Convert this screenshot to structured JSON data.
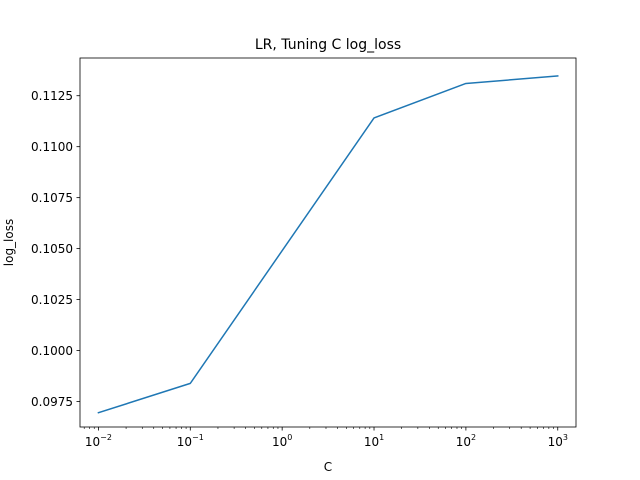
{
  "chart_data": {
    "type": "line",
    "title": "LR, Tuning C log_loss",
    "xlabel": "C",
    "ylabel": "log_loss",
    "xscale": "log",
    "xlim": [
      0.0063,
      1580
    ],
    "ylim": [
      0.09625,
      0.11435
    ],
    "x_ticks": [
      {
        "value": 0.01,
        "base": "10",
        "exp": "−2"
      },
      {
        "value": 0.1,
        "base": "10",
        "exp": "−1"
      },
      {
        "value": 1,
        "base": "10",
        "exp": "0"
      },
      {
        "value": 10,
        "base": "10",
        "exp": "1"
      },
      {
        "value": 100,
        "base": "10",
        "exp": "2"
      },
      {
        "value": 1000,
        "base": "10",
        "exp": "3"
      }
    ],
    "y_ticks": [
      {
        "value": 0.0975,
        "label": "0.0975"
      },
      {
        "value": 0.1,
        "label": "0.1000"
      },
      {
        "value": 0.1025,
        "label": "0.1025"
      },
      {
        "value": 0.105,
        "label": "0.1050"
      },
      {
        "value": 0.1075,
        "label": "0.1075"
      },
      {
        "value": 0.11,
        "label": "0.1100"
      },
      {
        "value": 0.1125,
        "label": "0.1125"
      }
    ],
    "grid": false,
    "series": [
      {
        "color": "#1f77b4",
        "x": [
          0.01,
          0.1,
          10,
          100,
          1000
        ],
        "y": [
          0.09695,
          0.09839,
          0.11141,
          0.1131,
          0.11347
        ]
      }
    ]
  }
}
